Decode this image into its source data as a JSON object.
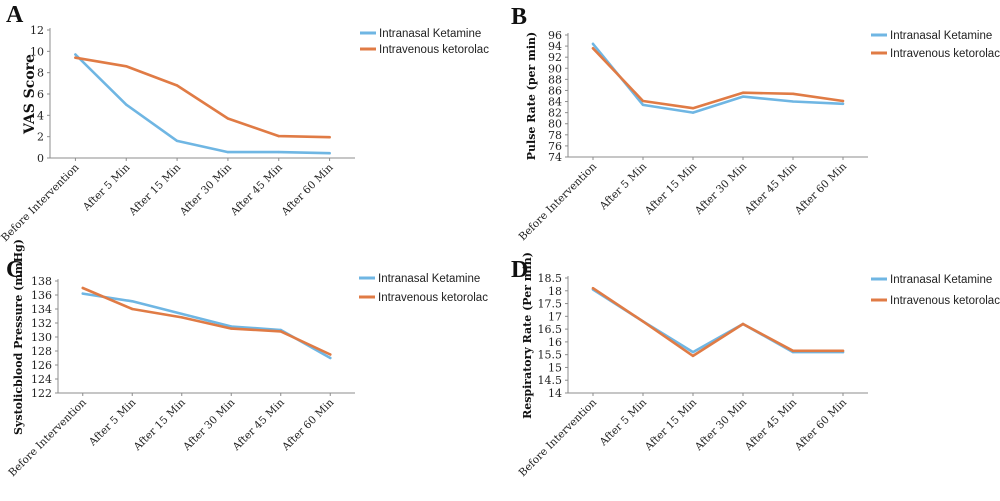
{
  "colors": {
    "ketamine": "#6fb6e3",
    "ketorolac": "#e07b45"
  },
  "chart_data": [
    {
      "type": "line",
      "panel": "A",
      "title": "",
      "xlabel": "",
      "ylabel": "VAS Score",
      "ylim": [
        0,
        12
      ],
      "yticks": [
        0,
        2,
        4,
        6,
        8,
        10,
        12
      ],
      "categories": [
        "Before Intervention",
        "After 5 Min",
        "After 15 Min",
        "After 30 Min",
        "After 45 Min",
        "After 60 Min"
      ],
      "series": [
        {
          "name": "Intranasal Ketamine",
          "values": [
            9.7,
            5.0,
            1.6,
            0.55,
            0.55,
            0.45
          ]
        },
        {
          "name": "Intravenous ketorolac",
          "values": [
            9.4,
            8.6,
            6.8,
            3.7,
            2.05,
            1.95
          ]
        }
      ],
      "legend": "right"
    },
    {
      "type": "line",
      "panel": "B",
      "title": "",
      "xlabel": "",
      "ylabel": "Pulse Rate (per min)",
      "ylim": [
        74,
        96
      ],
      "yticks": [
        74,
        76,
        78,
        80,
        82,
        84,
        86,
        88,
        90,
        92,
        94,
        96
      ],
      "categories": [
        "Before Intervention",
        "After 5 Min",
        "After 15 Min",
        "After 30 Min",
        "After 45 Min",
        "After 60 Min"
      ],
      "series": [
        {
          "name": "Intranasal Ketamine",
          "values": [
            94.4,
            83.4,
            82.0,
            84.9,
            84.0,
            83.6
          ]
        },
        {
          "name": "Intravenous ketorolac",
          "values": [
            93.6,
            84.1,
            82.8,
            85.6,
            85.4,
            84.1
          ]
        }
      ],
      "legend": "right"
    },
    {
      "type": "line",
      "panel": "C",
      "title": "",
      "xlabel": "",
      "ylabel": "Systolicblood Pressure (mmHg)",
      "ylim": [
        122,
        138
      ],
      "yticks": [
        122,
        124,
        126,
        128,
        130,
        132,
        134,
        136,
        138
      ],
      "categories": [
        "Before Intervention",
        "After 5 Min",
        "After 15 Min",
        "After 30 Min",
        "After 45 Min",
        "After 60 Min"
      ],
      "series": [
        {
          "name": "Intranasal Ketamine",
          "values": [
            136.2,
            135.1,
            133.3,
            131.5,
            131.0,
            127.0
          ]
        },
        {
          "name": "Intravenous ketorolac",
          "values": [
            137.0,
            134.0,
            132.8,
            131.2,
            130.8,
            127.5
          ]
        }
      ],
      "legend": "right"
    },
    {
      "type": "line",
      "panel": "D",
      "title": "",
      "xlabel": "",
      "ylabel": "Respiratory Rate (Per min)",
      "ylim": [
        14,
        18.5
      ],
      "yticks": [
        14,
        14.5,
        15,
        15.5,
        16,
        16.5,
        17,
        17.5,
        18,
        18.5
      ],
      "categories": [
        "Before Intervention",
        "After 5 Min",
        "After 15 Min",
        "After 30 Min",
        "After 45 Min",
        "After 60 Min"
      ],
      "series": [
        {
          "name": "Intranasal Ketamine",
          "values": [
            18.05,
            16.8,
            15.6,
            16.7,
            15.6,
            15.6
          ]
        },
        {
          "name": "Intravenous ketorolac",
          "values": [
            18.1,
            16.8,
            15.45,
            16.7,
            15.65,
            15.65
          ]
        }
      ],
      "legend": "right"
    }
  ]
}
